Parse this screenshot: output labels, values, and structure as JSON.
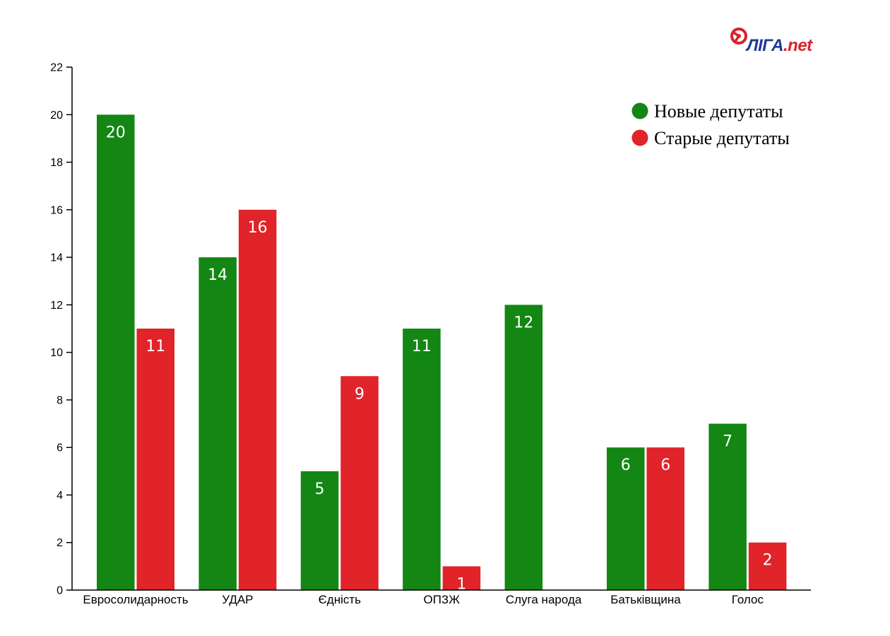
{
  "logo": {
    "name_main": "ЛІГА",
    "name_suffix": ".net"
  },
  "colors": {
    "new_deputies": "#138613",
    "old_deputies": "#e1232a",
    "axis": "#000000",
    "logo_blue": "#1f3a93",
    "logo_red": "#d9222a"
  },
  "chart_data": {
    "type": "bar",
    "title": "",
    "xlabel": "",
    "ylabel": "",
    "ylim": [
      0,
      22
    ],
    "yticks": [
      0,
      2,
      4,
      6,
      8,
      10,
      12,
      14,
      16,
      18,
      20,
      22
    ],
    "grid": false,
    "legend_position": "top-right",
    "categories": [
      "Евросолидарность",
      "УДАР",
      "Єдність",
      "ОПЗЖ",
      "Слуга народа",
      "Батьківщина",
      "Голос"
    ],
    "series": [
      {
        "name": "Новые депутаты",
        "color": "#138613",
        "values": [
          20,
          14,
          5,
          11,
          12,
          6,
          7
        ],
        "labels": [
          "20",
          "14",
          "5",
          "11",
          "12",
          "6",
          "7"
        ]
      },
      {
        "name": "Старые депутаты",
        "color": "#e1232a",
        "values": [
          11,
          16,
          9,
          1,
          0,
          6,
          2
        ],
        "labels": [
          "11",
          "16",
          "9",
          "1",
          "",
          "6",
          "2"
        ]
      }
    ]
  }
}
